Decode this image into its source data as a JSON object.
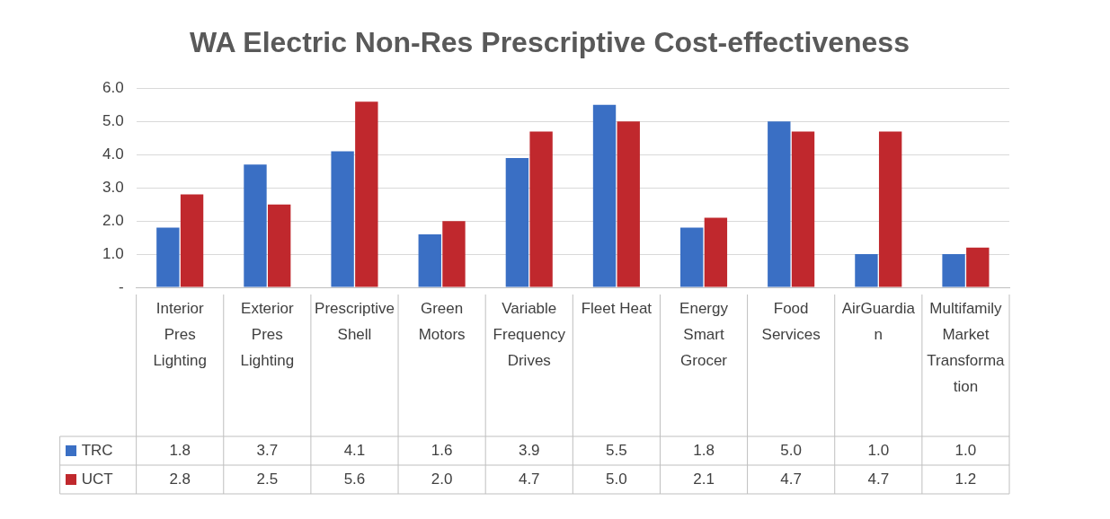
{
  "chart_data": {
    "type": "bar",
    "title": "WA Electric Non-Res Prescriptive Cost-effectiveness",
    "categories": [
      "Interior Pres Lighting",
      "Exterior Pres Lighting",
      "Prescriptive Shell",
      "Green Motors",
      "Variable Frequency Drives",
      "Fleet Heat",
      "Energy Smart Grocer",
      "Food Services",
      "AirGuardian",
      "Multifamily Market Transformation"
    ],
    "series": [
      {
        "name": "TRC",
        "color": "#3a6fc4",
        "values": [
          1.8,
          3.7,
          4.1,
          1.6,
          3.9,
          5.5,
          1.8,
          5.0,
          1.0,
          1.0
        ],
        "value_labels": [
          "1.8",
          "3.7",
          "4.1",
          "1.6",
          "3.9",
          "5.5",
          "1.8",
          "5.0",
          "1.0",
          "1.0"
        ]
      },
      {
        "name": "UCT",
        "color": "#c0282d",
        "values": [
          2.8,
          2.5,
          5.6,
          2.0,
          4.7,
          5.0,
          2.1,
          4.7,
          4.7,
          1.2
        ],
        "value_labels": [
          "2.8",
          "2.5",
          "5.6",
          "2.0",
          "4.7",
          "5.0",
          "2.1",
          "4.7",
          "4.7",
          "1.2"
        ]
      }
    ],
    "ylim": [
      0,
      6
    ],
    "yticks": [
      {
        "value": 0,
        "label": "-"
      },
      {
        "value": 1,
        "label": "1.0"
      },
      {
        "value": 2,
        "label": "2.0"
      },
      {
        "value": 3,
        "label": "3.0"
      },
      {
        "value": 4,
        "label": "4.0"
      },
      {
        "value": 5,
        "label": "5.0"
      },
      {
        "value": 6,
        "label": "6.0"
      }
    ],
    "grid": "y",
    "legend": "bottom left"
  }
}
